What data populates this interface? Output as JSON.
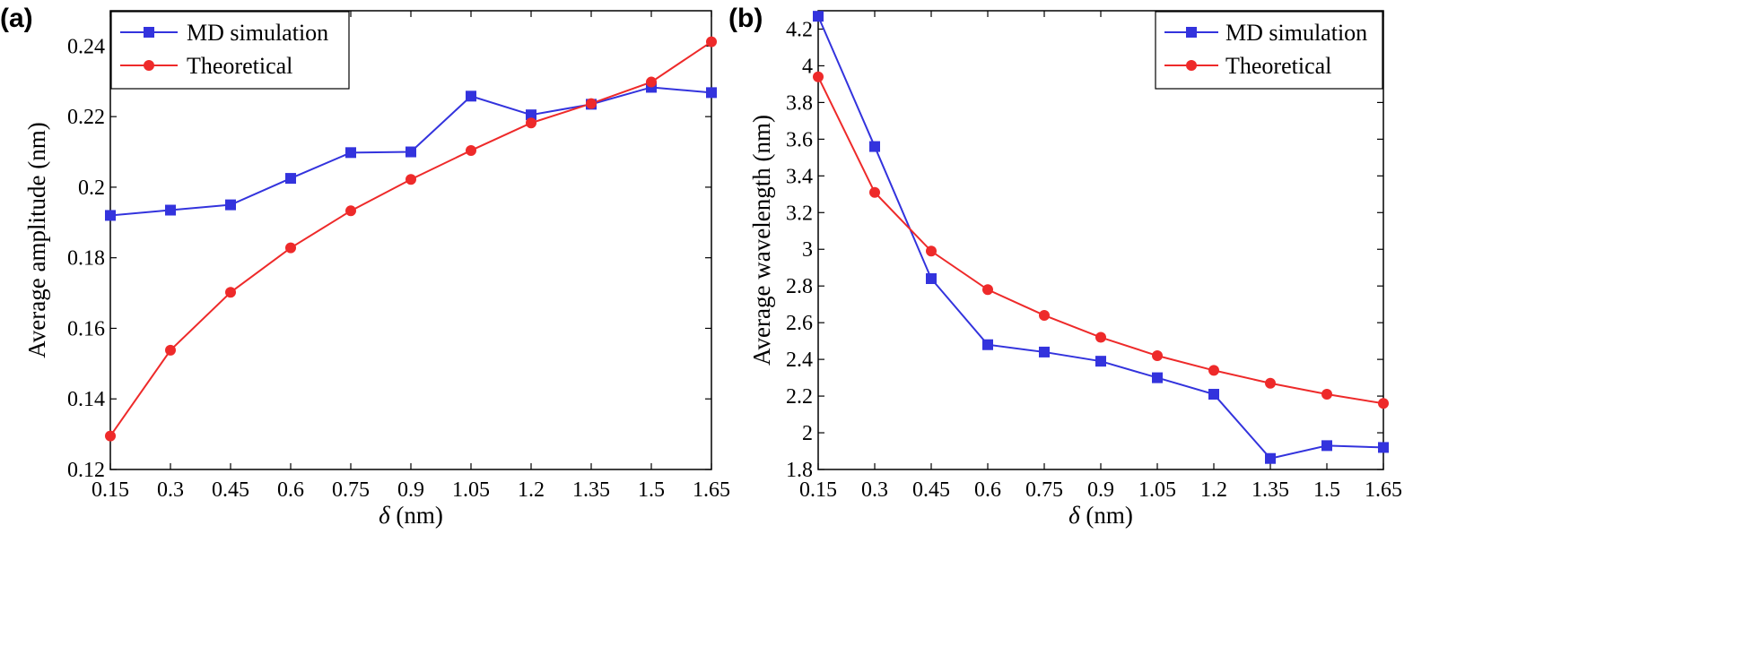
{
  "colors": {
    "md": "#3333dd",
    "theory": "#ee2a2a",
    "axis": "#000000",
    "background": "#ffffff"
  },
  "chart_data": [
    {
      "panel": "(a)",
      "type": "line",
      "x": [
        0.15,
        0.3,
        0.45,
        0.6,
        0.75,
        0.9,
        1.05,
        1.2,
        1.35,
        1.5,
        1.65
      ],
      "x_tick_labels": [
        "0.15",
        "0.3",
        "0.45",
        "0.6",
        "0.75",
        "0.9",
        "1.05",
        "1.2",
        "1.35",
        "1.5",
        "1.65"
      ],
      "xlabel_symbol": "δ",
      "xlabel_unit": " (nm)",
      "ylabel": "Average amplitude (nm)",
      "xlim": [
        0.15,
        1.65
      ],
      "ylim": [
        0.12,
        0.25
      ],
      "y_ticks": [
        0.12,
        0.14,
        0.16,
        0.18,
        0.2,
        0.22,
        0.24
      ],
      "y_tick_labels": [
        "0.12",
        "0.14",
        "0.16",
        "0.18",
        "0.2",
        "0.22",
        "0.24"
      ],
      "grid": false,
      "legend_position": "top-left",
      "series": [
        {
          "name": "MD simulation",
          "marker": "square",
          "color": "#3333dd",
          "values": [
            0.192,
            0.1935,
            0.195,
            0.2025,
            0.2098,
            0.21,
            0.2258,
            0.2205,
            0.2235,
            0.2283,
            0.2268
          ]
        },
        {
          "name": "Theoretical",
          "marker": "circle",
          "color": "#ee2a2a",
          "values": [
            0.1295,
            0.1538,
            0.1702,
            0.1828,
            0.1933,
            0.2022,
            0.2104,
            0.2182,
            0.2237,
            0.2298,
            0.2412
          ]
        }
      ]
    },
    {
      "panel": "(b)",
      "type": "line",
      "x": [
        0.15,
        0.3,
        0.45,
        0.6,
        0.75,
        0.9,
        1.05,
        1.2,
        1.35,
        1.5,
        1.65
      ],
      "x_tick_labels": [
        "0.15",
        "0.3",
        "0.45",
        "0.6",
        "0.75",
        "0.9",
        "1.05",
        "1.2",
        "1.35",
        "1.5",
        "1.65"
      ],
      "xlabel_symbol": "δ",
      "xlabel_unit": " (nm)",
      "ylabel": "Average wavelength (nm)",
      "xlim": [
        0.15,
        1.65
      ],
      "ylim": [
        1.8,
        4.3
      ],
      "y_ticks": [
        1.8,
        2,
        2.2,
        2.4,
        2.6,
        2.8,
        3,
        3.2,
        3.4,
        3.6,
        3.8,
        4,
        4.2
      ],
      "y_tick_labels": [
        "1.8",
        "2",
        "2.2",
        "2.4",
        "2.6",
        "2.8",
        "3",
        "3.2",
        "3.4",
        "3.6",
        "3.8",
        "4",
        "4.2"
      ],
      "grid": false,
      "legend_position": "top-right",
      "series": [
        {
          "name": "MD simulation",
          "marker": "square",
          "color": "#3333dd",
          "values": [
            4.27,
            3.56,
            2.84,
            2.48,
            2.44,
            2.39,
            2.3,
            2.21,
            1.86,
            1.93,
            1.92
          ]
        },
        {
          "name": "Theoretical",
          "marker": "circle",
          "color": "#ee2a2a",
          "values": [
            3.94,
            3.31,
            2.99,
            2.78,
            2.64,
            2.52,
            2.42,
            2.34,
            2.27,
            2.21,
            2.16
          ]
        }
      ]
    }
  ]
}
